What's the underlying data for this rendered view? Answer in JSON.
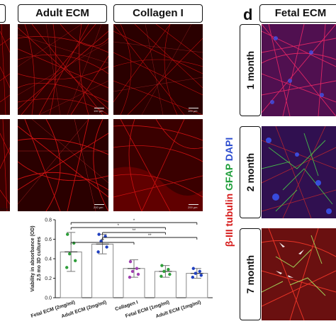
{
  "headers": {
    "adult_ecm": "Adult ECM",
    "collagen_i": "Collagen I",
    "fetal_ecm": "Fetal ECM"
  },
  "panel_d": {
    "letter": "d"
  },
  "scale_bars": {
    "top_row": "100 µm",
    "bottom_row": "200 µm"
  },
  "time_points": [
    "1 month",
    "2 month",
    "7 month"
  ],
  "stain_labels": {
    "tubulin": "β-III tubulin",
    "gfap": "GFAP",
    "dapi": "DAPI",
    "tubulin_color": "#d61a1a",
    "gfap_color": "#1f9e3a",
    "dapi_color": "#2f4fd0"
  },
  "chart_data": {
    "type": "bar",
    "ylabel_line1": "Viability in absorbance (OD)",
    "ylabel_line2": "2.5 mo 3D cultures",
    "categories": [
      "Fetal ECM (2mg/ml)",
      "Adult ECM (2mg/ml)",
      "Collagen I",
      "Fetal ECM (1mg/ml)",
      "Adult ECM (1mg/ml)"
    ],
    "values": [
      0.47,
      0.55,
      0.3,
      0.27,
      0.25
    ],
    "errors": [
      0.2,
      0.1,
      0.09,
      0.06,
      0.05
    ],
    "ylim": [
      0.0,
      0.8
    ],
    "yticks": [
      "0.0",
      "0.2",
      "0.4",
      "0.6",
      "0.8"
    ],
    "point_colors": [
      "#2e9e3a",
      "#1f3fbf",
      "#a040b0",
      "#2e9e3a",
      "#1f3fbf"
    ],
    "points": [
      [
        0.65,
        0.56,
        0.45,
        0.38,
        0.31
      ],
      [
        0.65,
        0.63,
        0.58,
        0.52,
        0.47
      ],
      [
        0.37,
        0.3,
        0.27,
        0.24,
        0.21
      ],
      [
        0.33,
        0.29,
        0.27,
        0.24,
        0.22
      ],
      [
        0.3,
        0.27,
        0.25,
        0.23,
        0.21
      ]
    ],
    "brackets": [
      {
        "from": 0,
        "to": 4,
        "label": "*"
      },
      {
        "from": 0,
        "to": 3,
        "label": "*"
      },
      {
        "from": 1,
        "to": 3,
        "label": "**"
      },
      {
        "from": 1,
        "to": 4,
        "label": "**"
      },
      {
        "from": 0,
        "to": 2,
        "label": "**"
      }
    ]
  }
}
